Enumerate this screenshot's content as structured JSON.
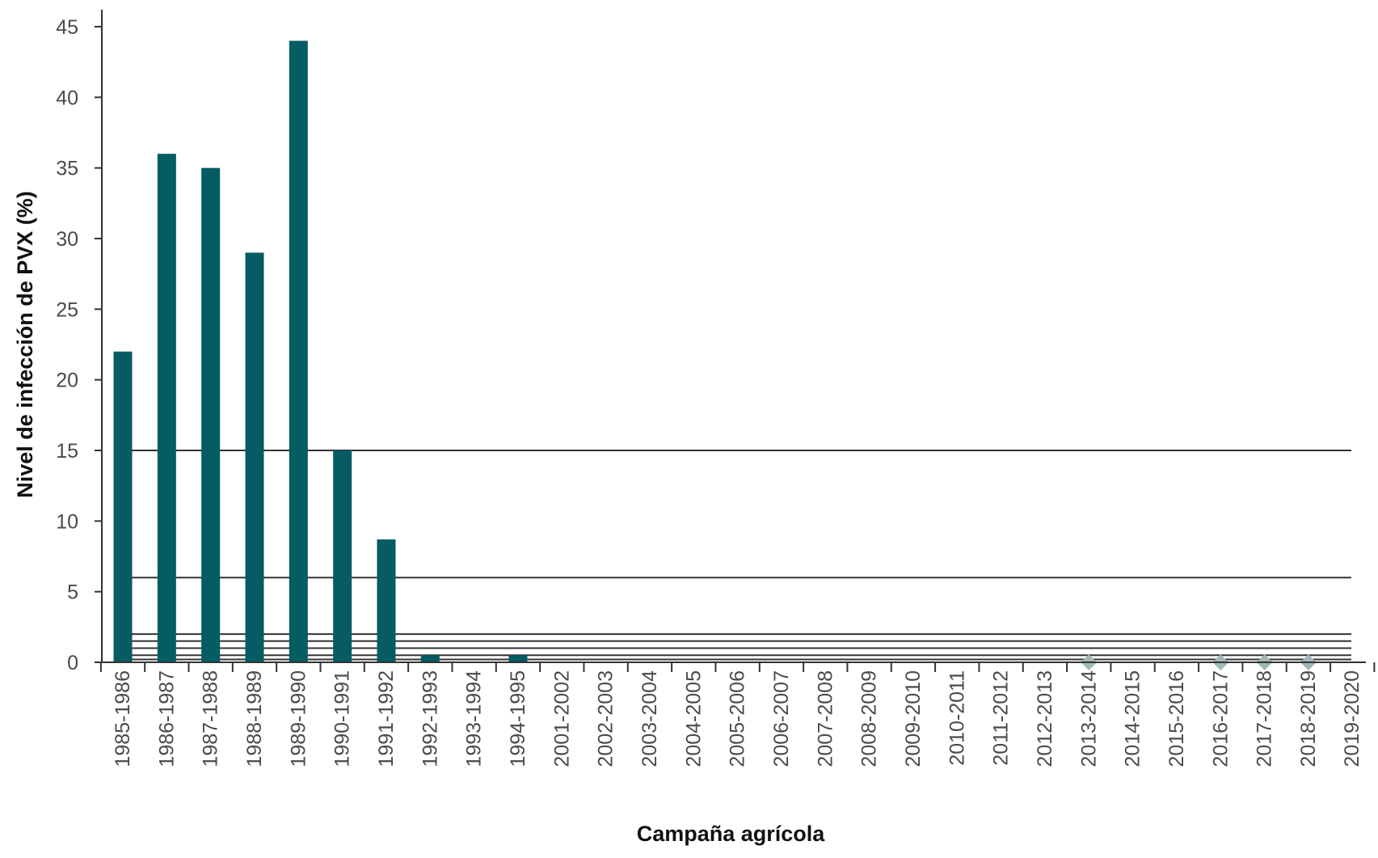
{
  "chart_data": {
    "type": "bar",
    "xlabel": "Campaña agrícola",
    "ylabel": "Nivel de infección de PVX (%)",
    "ylim": [
      0,
      45
    ],
    "yticks": [
      0,
      5,
      10,
      15,
      20,
      25,
      30,
      35,
      40,
      45
    ],
    "categories": [
      "1985-1986",
      "1986-1987",
      "1987-1988",
      "1988-1989",
      "1989-1990",
      "1990-1991",
      "1991-1992",
      "1992-1993",
      "1993-1994",
      "1994-1995",
      "2001-2002",
      "2002-2003",
      "2003-2004",
      "2004-2005",
      "2005-2006",
      "2006-2007",
      "2007-2008",
      "2008-2009",
      "2009-2010",
      "2010-2011",
      "2011-2012",
      "2012-2013",
      "2013-2014",
      "2014-2015",
      "2015-2016",
      "2016-2017",
      "2017-2018",
      "2018-2019",
      "2019-2020"
    ],
    "series": [
      {
        "type": "bar",
        "color": "#055c63",
        "values": [
          22,
          36,
          35,
          29,
          44,
          15,
          8.7,
          0.5,
          0,
          0.5,
          null,
          null,
          null,
          null,
          null,
          null,
          null,
          null,
          null,
          null,
          null,
          null,
          null,
          null,
          null,
          null,
          null,
          null,
          null
        ]
      },
      {
        "type": "marker",
        "marker": "diamond",
        "color": "#9fb8b8",
        "values": [
          null,
          null,
          null,
          null,
          null,
          null,
          null,
          null,
          null,
          null,
          null,
          null,
          null,
          null,
          null,
          null,
          null,
          null,
          null,
          null,
          null,
          null,
          0,
          null,
          null,
          0,
          0,
          0,
          null
        ]
      }
    ],
    "reference_lines": [
      {
        "y": 15,
        "color": "#333333"
      },
      {
        "y": 6,
        "color": "#333333"
      },
      {
        "y": 2,
        "color": "#333333"
      },
      {
        "y": 1.5,
        "color": "#333333"
      },
      {
        "y": 1,
        "color": "#333333"
      },
      {
        "y": 0.5,
        "color": "#333333"
      },
      {
        "y": 0.2,
        "color": "#333333"
      }
    ],
    "grid": false,
    "axis_color": "#333333"
  }
}
